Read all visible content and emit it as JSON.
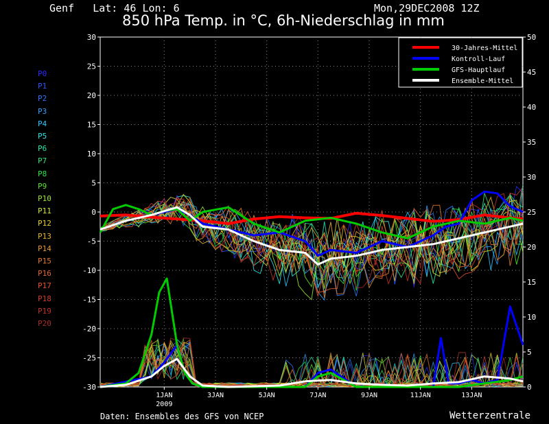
{
  "header": {
    "location": "Genf   Lat: 46 Lon: 6",
    "date": "Mon,29DEC2008 12Z",
    "title": "850 hPa Temp. in °C, 6h-Niederschlag in mm"
  },
  "footer": {
    "source": "Daten: Ensembles des GFS von NCEP",
    "brand": "Wetterzentrale"
  },
  "members": [
    {
      "label": "P0",
      "color": "#2a2aff"
    },
    {
      "label": "P1",
      "color": "#2a55ff"
    },
    {
      "label": "P2",
      "color": "#2a78ff"
    },
    {
      "label": "P3",
      "color": "#2aa0ff"
    },
    {
      "label": "P4",
      "color": "#2ac8ff"
    },
    {
      "label": "P5",
      "color": "#2ae6e6"
    },
    {
      "label": "P6",
      "color": "#2ae6b0"
    },
    {
      "label": "P7",
      "color": "#2ae678"
    },
    {
      "label": "P8",
      "color": "#2ae640"
    },
    {
      "label": "P9",
      "color": "#5ae62a"
    },
    {
      "label": "P10",
      "color": "#9ee62a"
    },
    {
      "label": "P11",
      "color": "#d2e62a"
    },
    {
      "label": "P12",
      "color": "#e6d22a"
    },
    {
      "label": "P13",
      "color": "#e6b42a"
    },
    {
      "label": "P14",
      "color": "#e6962a"
    },
    {
      "label": "P15",
      "color": "#e6782a"
    },
    {
      "label": "P16",
      "color": "#e6642a"
    },
    {
      "label": "P17",
      "color": "#e6502a"
    },
    {
      "label": "P18",
      "color": "#d23c2a"
    },
    {
      "label": "P19",
      "color": "#c0322a"
    },
    {
      "label": "P20",
      "color": "#a82a2a"
    }
  ],
  "chart_data": {
    "type": "line",
    "title": "850 hPa Temp. in °C, 6h-Niederschlag in mm",
    "x_unit": "days since 29DEC2008 12Z",
    "xlim": [
      0,
      16.5
    ],
    "x_ticks": [
      {
        "x": 2.5,
        "label": "1JAN"
      },
      {
        "x": 4.5,
        "label": "3JAN"
      },
      {
        "x": 6.5,
        "label": "5JAN"
      },
      {
        "x": 8.5,
        "label": "7JAN"
      },
      {
        "x": 10.5,
        "label": "9JAN"
      },
      {
        "x": 12.5,
        "label": "11JAN"
      },
      {
        "x": 14.5,
        "label": "13JAN"
      }
    ],
    "x_sublabel": {
      "x": 2.5,
      "label": "2009"
    },
    "y_left": {
      "lim": [
        -30,
        30
      ],
      "ticks": [
        30,
        25,
        20,
        15,
        10,
        5,
        0,
        -5,
        -10,
        -15,
        -20,
        -25,
        -30
      ]
    },
    "y_right": {
      "lim": [
        0,
        50
      ],
      "ticks": [
        50,
        45,
        40,
        35,
        30,
        25,
        20,
        15,
        10,
        5,
        0
      ]
    },
    "grid": true,
    "legend": {
      "position": "top-right",
      "entries": [
        {
          "name": "30-Jahres-Mittel",
          "color": "#ff0000"
        },
        {
          "name": "Kontroll-Lauf",
          "color": "#0000ff"
        },
        {
          "name": "GFS-Hauptlauf",
          "color": "#00cc00"
        },
        {
          "name": "Ensemble-Mittel",
          "color": "#ffffff"
        }
      ]
    },
    "temperature_series": [
      {
        "name": "30-Jahres-Mittel",
        "color": "#ff0000",
        "width": 4,
        "x": [
          0,
          1,
          2,
          3,
          4,
          5,
          6,
          7,
          8,
          9,
          10,
          11,
          12,
          13,
          14,
          15,
          16,
          16.5
        ],
        "y": [
          -0.7,
          -0.5,
          -0.9,
          -1.2,
          -1.5,
          -2.0,
          -1.2,
          -0.8,
          -1.0,
          -1.1,
          -0.2,
          -0.6,
          -1.1,
          -1.6,
          -1.3,
          -0.5,
          -1.0,
          -1.2
        ]
      },
      {
        "name": "Kontroll-Lauf",
        "color": "#0000ff",
        "width": 3,
        "x": [
          0,
          1,
          2,
          3,
          3.5,
          4,
          5,
          6,
          7,
          8,
          8.5,
          9,
          10,
          11,
          12,
          13,
          13.5,
          14,
          14.5,
          15,
          15.5,
          16,
          16.5
        ],
        "y": [
          -3.0,
          -1.5,
          -0.5,
          0.5,
          -0.5,
          -2.0,
          -3.0,
          -4.0,
          -3.5,
          -5.0,
          -7.5,
          -6.5,
          -7.0,
          -5.0,
          -6.0,
          -4.0,
          -2.5,
          -2.0,
          2.0,
          3.5,
          3.2,
          1.0,
          0.0
        ]
      },
      {
        "name": "GFS-Hauptlauf",
        "color": "#00cc00",
        "width": 3,
        "x": [
          0,
          0.5,
          1,
          1.5,
          2,
          2.5,
          3,
          3.5,
          4,
          5,
          6,
          7,
          8,
          9,
          10,
          11,
          12,
          13,
          14,
          15,
          16,
          16.5
        ],
        "y": [
          -3.5,
          0.5,
          1.2,
          0.5,
          -0.5,
          0.2,
          0.5,
          -1.5,
          0.0,
          0.8,
          -2.0,
          -3.5,
          -1.5,
          -1.0,
          -2.0,
          -3.5,
          -4.5,
          -2.5,
          -1.5,
          -2.0,
          -1.0,
          -1.5
        ]
      },
      {
        "name": "Ensemble-Mittel",
        "color": "#ffffff",
        "width": 3,
        "x": [
          0,
          1,
          2,
          3,
          3.5,
          4,
          5,
          6,
          7,
          8,
          8.5,
          9,
          10,
          11,
          12,
          13,
          14,
          15,
          16,
          16.5
        ],
        "y": [
          -3.0,
          -1.5,
          -0.5,
          0.8,
          -0.5,
          -2.5,
          -3.0,
          -5.0,
          -6.5,
          -7.0,
          -9.0,
          -8.0,
          -7.5,
          -6.5,
          -6.0,
          -5.5,
          -4.5,
          -3.5,
          -2.5,
          -2.0
        ]
      }
    ],
    "precip_series": [
      {
        "name": "Kontroll-Lauf",
        "color": "#0000ff",
        "width": 3,
        "x": [
          0,
          2,
          2.5,
          3,
          3.3,
          3.6,
          4,
          8,
          8.5,
          9,
          10,
          13,
          13.3,
          13.6,
          14,
          14.5,
          15,
          15.5,
          16,
          16.5
        ],
        "y": [
          0,
          1.5,
          3.5,
          6.0,
          2.0,
          0.5,
          0,
          0,
          2.0,
          2.5,
          0,
          0,
          7.0,
          0.5,
          0.5,
          1.0,
          0.5,
          1.0,
          11.5,
          6.0
        ]
      },
      {
        "name": "GFS-Hauptlauf",
        "color": "#00cc00",
        "width": 3,
        "x": [
          0,
          1,
          1.5,
          2,
          2.3,
          2.6,
          3,
          3.3,
          3.6,
          4,
          8,
          8.5,
          9,
          10,
          14,
          15,
          16,
          16.5
        ],
        "y": [
          0,
          0.5,
          2.0,
          7.5,
          13.5,
          15.5,
          6.0,
          2.0,
          0.5,
          0,
          0,
          1.5,
          2.0,
          0,
          0,
          0.5,
          1.0,
          1.5
        ]
      },
      {
        "name": "Ensemble-Mittel",
        "color": "#ffffff",
        "width": 3,
        "x": [
          0,
          1,
          2,
          2.5,
          3,
          3.5,
          4,
          5,
          6,
          7,
          8,
          9,
          10,
          11,
          12,
          13,
          14,
          15,
          16,
          16.5
        ],
        "y": [
          0,
          0.3,
          1.5,
          3.0,
          4.0,
          1.5,
          0.2,
          0.0,
          0.1,
          0.2,
          0.8,
          1.0,
          0.5,
          0.3,
          0.2,
          0.5,
          0.7,
          1.5,
          1.2,
          0.8
        ]
      }
    ]
  }
}
